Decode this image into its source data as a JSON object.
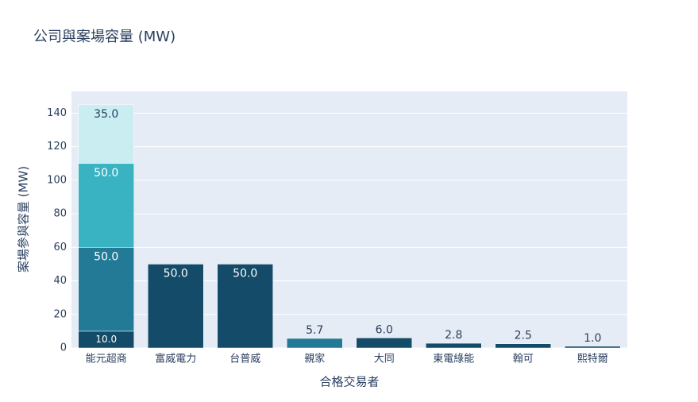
{
  "chart_data": {
    "type": "bar",
    "stacked": true,
    "title": "公司與案場容量 (MW)",
    "x_label": "合格交易者",
    "y_label": "案場參與容量 (MW)",
    "categories": [
      "能元超商",
      "富威電力",
      "台普威",
      "親家",
      "大同",
      "東電綠能",
      "翰可",
      "熙特爾"
    ],
    "series": [
      {
        "color": "#134b68",
        "values": [
          10,
          50,
          50,
          null,
          6.0,
          2.8,
          2.5,
          1.0
        ],
        "value_labels": [
          "10.0",
          "50.0",
          "50.0",
          null,
          "6.0",
          "2.8",
          "2.5",
          "1.0"
        ]
      },
      {
        "color": "#227a96",
        "values": [
          50,
          null,
          null,
          5.7,
          null,
          null,
          null,
          null
        ],
        "value_labels": [
          "50.0",
          null,
          null,
          "5.7",
          null,
          null,
          null,
          null
        ]
      },
      {
        "color": "#39b3c2",
        "values": [
          50,
          null,
          null,
          null,
          null,
          null,
          null,
          null
        ],
        "value_labels": [
          "50.0",
          null,
          null,
          null,
          null,
          null,
          null,
          null
        ]
      },
      {
        "color": "#c9edf1",
        "values": [
          35,
          null,
          null,
          null,
          null,
          null,
          null,
          null
        ],
        "value_labels": [
          "35.0",
          null,
          null,
          null,
          null,
          null,
          null,
          null
        ]
      }
    ],
    "ylim": [
      0,
      153
    ],
    "yticks": [
      0,
      20,
      40,
      60,
      80,
      100,
      120,
      140
    ],
    "grid": true
  }
}
